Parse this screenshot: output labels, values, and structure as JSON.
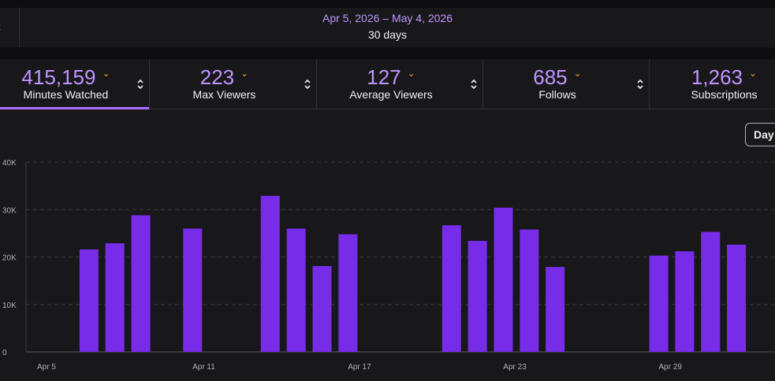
{
  "header": {
    "back_icon": "chevron-left-icon",
    "date_range": "Apr 5, 2026 – May 4, 2026",
    "span": "30 days"
  },
  "stats": [
    {
      "value": "415,159",
      "label": "Minutes Watched",
      "active": true
    },
    {
      "value": "223",
      "label": "Max Viewers",
      "active": false
    },
    {
      "value": "127",
      "label": "Average Viewers",
      "active": false
    },
    {
      "value": "685",
      "label": "Follows",
      "active": false
    },
    {
      "value": "1,263",
      "label": "Subscriptions",
      "active": false
    }
  ],
  "controls": {
    "granularity": "Day"
  },
  "colors": {
    "accent": "#bf94ff",
    "bar": "#772ce8",
    "chevron": "#f0a531",
    "background": "#18181b"
  },
  "chart_data": {
    "type": "bar",
    "title": "",
    "xlabel": "",
    "ylabel": "",
    "ylim": [
      0,
      40000
    ],
    "y_ticks": [
      0,
      10000,
      20000,
      30000,
      40000
    ],
    "y_tick_labels": [
      "0",
      "10K",
      "20K",
      "30K",
      "40K"
    ],
    "x_tick_labels": [
      "Apr 5",
      "Apr 11",
      "Apr 17",
      "Apr 23",
      "Apr 29"
    ],
    "categories": [
      "Apr 5",
      "Apr 6",
      "Apr 7",
      "Apr 8",
      "Apr 9",
      "Apr 10",
      "Apr 11",
      "Apr 12",
      "Apr 13",
      "Apr 14",
      "Apr 15",
      "Apr 16",
      "Apr 17",
      "Apr 18",
      "Apr 19",
      "Apr 20",
      "Apr 21",
      "Apr 22",
      "Apr 23",
      "Apr 24",
      "Apr 25",
      "Apr 26",
      "Apr 27",
      "Apr 28",
      "Apr 29",
      "Apr 30",
      "May 1",
      "May 2",
      "May 3",
      "May 4"
    ],
    "values": [
      0,
      21600,
      22900,
      28800,
      0,
      26000,
      0,
      0,
      32900,
      26000,
      18100,
      24800,
      0,
      0,
      0,
      26700,
      23400,
      30400,
      25800,
      17900,
      0,
      0,
      0,
      20300,
      21200,
      25300,
      22600,
      0,
      0,
      0
    ],
    "grid": true,
    "legend": "none"
  }
}
